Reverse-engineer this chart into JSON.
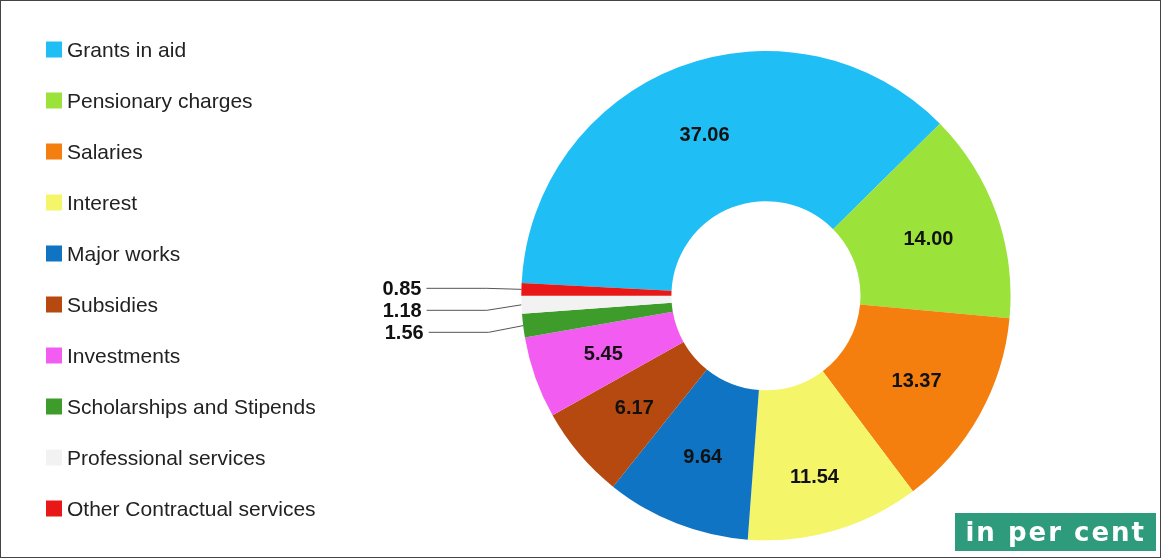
{
  "chart_data": {
    "type": "donut",
    "categories": [
      "Grants in aid",
      "Pensionary charges",
      "Salaries",
      "Interest",
      "Major works",
      "Subsidies",
      "Investments",
      "Scholarships and Stipends",
      "Professional services",
      "Other Contractual services"
    ],
    "values": [
      37.06,
      14.0,
      13.37,
      11.54,
      9.64,
      6.17,
      5.45,
      1.56,
      1.18,
      0.85
    ],
    "value_labels": [
      "37.06",
      "14.00",
      "13.37",
      "11.54",
      "9.64",
      "6.17",
      "5.45",
      "1.56",
      "1.18",
      "0.85"
    ],
    "colors": [
      "#1fbff5",
      "#9be23a",
      "#f57f0e",
      "#f5f56a",
      "#0f74c4",
      "#b6490f",
      "#f25cf0",
      "#3e9c2a",
      "#f2f2f2",
      "#e81818"
    ],
    "legend": "left",
    "annotations": [
      "in per cent"
    ]
  }
}
